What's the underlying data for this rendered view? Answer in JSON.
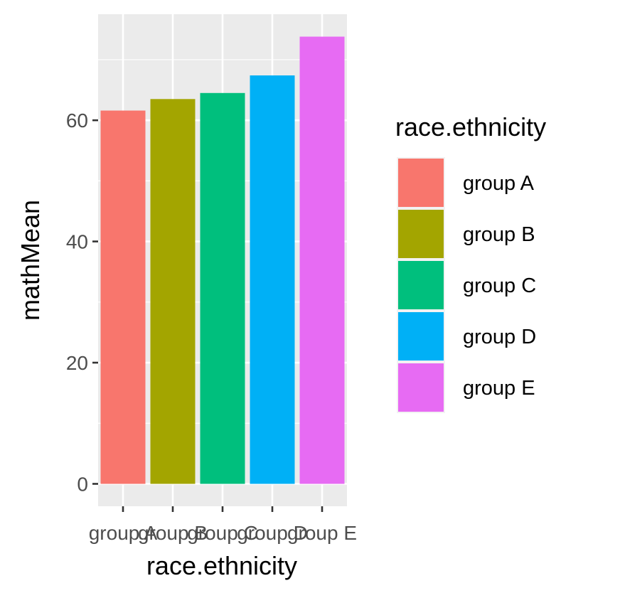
{
  "chart_data": {
    "type": "bar",
    "categories": [
      "group A",
      "group B",
      "group C",
      "group D",
      "group E"
    ],
    "values": [
      61.6,
      63.5,
      64.5,
      67.4,
      73.8
    ],
    "colors": [
      "#F8766D",
      "#A3A500",
      "#00BF7D",
      "#00B0F6",
      "#E76BF3"
    ],
    "xlabel": "race.ethnicity",
    "ylabel": "mathMean",
    "ylim": [
      -3.7,
      77.5
    ],
    "yticks": [
      0,
      20,
      40,
      60
    ],
    "ytick_labels": [
      "0",
      "20",
      "40",
      "60"
    ],
    "grid": true,
    "panel_background": "#EBEBEB",
    "legend": {
      "title": "race.ethnicity",
      "placement": "right",
      "entries": [
        "group A",
        "group B",
        "group C",
        "group D",
        "group E"
      ]
    }
  }
}
